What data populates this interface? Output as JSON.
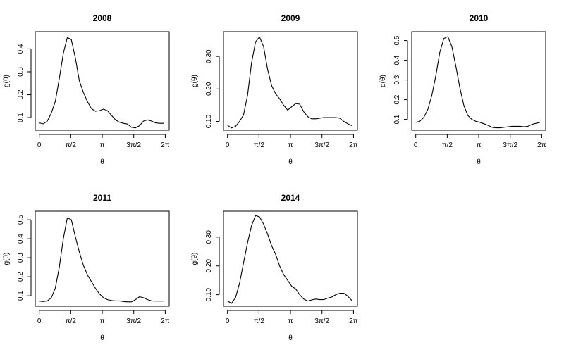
{
  "chart_data": [
    {
      "type": "line",
      "title": "2008",
      "xlabel": "θ",
      "ylabel": "g(θ)",
      "xlim": [
        -0.2,
        6.48
      ],
      "ylim": [
        0.045,
        0.475
      ],
      "xticks": [
        0,
        1.5708,
        3.1416,
        4.7124,
        6.2832
      ],
      "xtick_labels": [
        "0",
        "π/2",
        "π",
        "3π/2",
        "2π"
      ],
      "yticks": [
        0.1,
        0.2,
        0.3,
        0.4
      ],
      "ytick_labels": [
        "0.1",
        "0.2",
        "0.3",
        "0.4"
      ],
      "x": [
        0,
        0.2,
        0.4,
        0.6,
        0.8,
        1.0,
        1.2,
        1.4,
        1.6,
        1.8,
        2.0,
        2.2,
        2.4,
        2.6,
        2.8,
        3.0,
        3.2,
        3.4,
        3.6,
        3.8,
        4.0,
        4.2,
        4.4,
        4.6,
        4.8,
        5.0,
        5.2,
        5.4,
        5.6,
        5.8,
        6.0,
        6.2
      ],
      "y": [
        0.077,
        0.073,
        0.085,
        0.12,
        0.17,
        0.27,
        0.38,
        0.45,
        0.44,
        0.36,
        0.26,
        0.21,
        0.17,
        0.14,
        0.128,
        0.13,
        0.137,
        0.13,
        0.11,
        0.09,
        0.08,
        0.075,
        0.072,
        0.058,
        0.055,
        0.065,
        0.085,
        0.09,
        0.085,
        0.077,
        0.075,
        0.075
      ]
    },
    {
      "type": "line",
      "title": "2009",
      "xlabel": "θ",
      "ylabel": "g(θ)",
      "xlim": [
        -0.2,
        6.48
      ],
      "ylim": [
        0.073,
        0.376
      ],
      "xticks": [
        0,
        1.5708,
        3.1416,
        4.7124,
        6.2832
      ],
      "xtick_labels": [
        "0",
        "π/2",
        "π",
        "3π/2",
        "2π"
      ],
      "yticks": [
        0.1,
        0.2,
        0.3
      ],
      "ytick_labels": [
        "0.10",
        "0.20",
        "0.30"
      ],
      "x": [
        0,
        0.2,
        0.4,
        0.6,
        0.8,
        1.0,
        1.2,
        1.4,
        1.6,
        1.8,
        2.0,
        2.2,
        2.4,
        2.6,
        2.8,
        3.0,
        3.2,
        3.4,
        3.6,
        3.8,
        4.0,
        4.2,
        4.4,
        4.6,
        4.8,
        5.0,
        5.2,
        5.4,
        5.6,
        5.8,
        6.0,
        6.2
      ],
      "y": [
        0.088,
        0.08,
        0.085,
        0.1,
        0.12,
        0.18,
        0.28,
        0.345,
        0.36,
        0.33,
        0.26,
        0.21,
        0.185,
        0.17,
        0.15,
        0.135,
        0.145,
        0.155,
        0.153,
        0.13,
        0.115,
        0.108,
        0.108,
        0.11,
        0.112,
        0.112,
        0.112,
        0.112,
        0.11,
        0.1,
        0.093,
        0.087
      ]
    },
    {
      "type": "line",
      "title": "2010",
      "xlabel": "θ",
      "ylabel": "g(θ)",
      "xlim": [
        -0.2,
        6.48
      ],
      "ylim": [
        0.045,
        0.545
      ],
      "xticks": [
        0,
        1.5708,
        3.1416,
        4.7124,
        6.2832
      ],
      "xtick_labels": [
        "0",
        "π/2",
        "π",
        "3π/2",
        "2π"
      ],
      "yticks": [
        0.1,
        0.2,
        0.3,
        0.4,
        0.5
      ],
      "ytick_labels": [
        "0.1",
        "0.2",
        "0.3",
        "0.4",
        "0.5"
      ],
      "x": [
        0,
        0.2,
        0.4,
        0.6,
        0.8,
        1.0,
        1.2,
        1.4,
        1.6,
        1.8,
        2.0,
        2.2,
        2.4,
        2.6,
        2.8,
        3.0,
        3.2,
        3.4,
        3.6,
        3.8,
        4.0,
        4.2,
        4.4,
        4.6,
        4.8,
        5.0,
        5.2,
        5.4,
        5.6,
        5.8,
        6.0,
        6.2
      ],
      "y": [
        0.085,
        0.09,
        0.11,
        0.15,
        0.22,
        0.32,
        0.44,
        0.51,
        0.52,
        0.47,
        0.37,
        0.26,
        0.17,
        0.12,
        0.1,
        0.09,
        0.085,
        0.078,
        0.07,
        0.06,
        0.057,
        0.057,
        0.06,
        0.062,
        0.065,
        0.065,
        0.065,
        0.063,
        0.065,
        0.075,
        0.08,
        0.085
      ]
    },
    {
      "type": "line",
      "title": "2011",
      "xlabel": "θ",
      "ylabel": "g(θ)",
      "xlim": [
        -0.2,
        6.48
      ],
      "ylim": [
        0.045,
        0.545
      ],
      "xticks": [
        0,
        1.5708,
        3.1416,
        4.7124,
        6.2832
      ],
      "xtick_labels": [
        "0",
        "π/2",
        "π",
        "3π/2",
        "2π"
      ],
      "yticks": [
        0.1,
        0.2,
        0.3,
        0.4,
        0.5
      ],
      "ytick_labels": [
        "0.1",
        "0.2",
        "0.3",
        "0.4",
        "0.5"
      ],
      "x": [
        0,
        0.2,
        0.4,
        0.6,
        0.8,
        1.0,
        1.2,
        1.4,
        1.6,
        1.8,
        2.0,
        2.2,
        2.4,
        2.6,
        2.8,
        3.0,
        3.2,
        3.4,
        3.6,
        3.8,
        4.0,
        4.2,
        4.4,
        4.6,
        4.8,
        5.0,
        5.2,
        5.4,
        5.6,
        5.8,
        6.0,
        6.2
      ],
      "y": [
        0.072,
        0.07,
        0.073,
        0.09,
        0.14,
        0.25,
        0.4,
        0.51,
        0.5,
        0.41,
        0.33,
        0.26,
        0.21,
        0.175,
        0.14,
        0.11,
        0.09,
        0.08,
        0.075,
        0.073,
        0.073,
        0.07,
        0.068,
        0.068,
        0.08,
        0.095,
        0.09,
        0.08,
        0.073,
        0.072,
        0.072,
        0.072
      ]
    },
    {
      "type": "line",
      "title": "2014",
      "xlabel": "θ",
      "ylabel": "g(θ)",
      "xlim": [
        -0.2,
        6.48
      ],
      "ylim": [
        0.06,
        0.39
      ],
      "xticks": [
        0,
        1.5708,
        3.1416,
        4.7124,
        6.2832
      ],
      "xtick_labels": [
        "0",
        "π/2",
        "π",
        "3π/2",
        "2π"
      ],
      "yticks": [
        0.1,
        0.2,
        0.3
      ],
      "ytick_labels": [
        "0.10",
        "0.20",
        "0.30"
      ],
      "x": [
        0,
        0.2,
        0.4,
        0.6,
        0.8,
        1.0,
        1.2,
        1.4,
        1.6,
        1.8,
        2.0,
        2.2,
        2.4,
        2.6,
        2.8,
        3.0,
        3.2,
        3.4,
        3.6,
        3.8,
        4.0,
        4.2,
        4.4,
        4.6,
        4.8,
        5.0,
        5.2,
        5.4,
        5.6,
        5.8,
        6.0,
        6.2
      ],
      "y": [
        0.078,
        0.07,
        0.09,
        0.14,
        0.21,
        0.28,
        0.34,
        0.375,
        0.37,
        0.345,
        0.31,
        0.27,
        0.24,
        0.2,
        0.17,
        0.15,
        0.13,
        0.12,
        0.1,
        0.085,
        0.078,
        0.082,
        0.085,
        0.083,
        0.083,
        0.088,
        0.092,
        0.1,
        0.105,
        0.105,
        0.095,
        0.08
      ]
    }
  ]
}
